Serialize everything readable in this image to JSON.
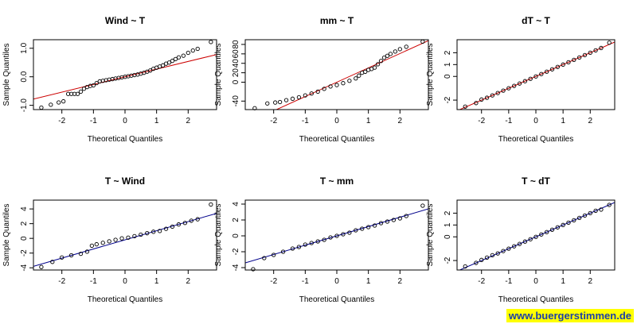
{
  "watermark": "www.buergerstimmen.de",
  "chart_data": [
    {
      "type": "scatter",
      "subtype": "qq-plot",
      "title": "Wind ~ T",
      "xlabel": "Theoretical Quantiles",
      "ylabel": "Sample Quantiles",
      "xlim": [
        -2.9,
        2.9
      ],
      "ylim": [
        -1.15,
        1.3
      ],
      "xticks": [
        "-2",
        "-1",
        "0",
        "1",
        "2"
      ],
      "yticks": [
        "-1.0",
        "0.0",
        "1.0"
      ],
      "reference_line": {
        "color": "#cc0000",
        "points": [
          [
            -2.9,
            -0.78
          ],
          [
            2.9,
            0.78
          ]
        ]
      },
      "point_color": "#000000",
      "points": [
        [
          -2.65,
          -1.08
        ],
        [
          -2.35,
          -0.98
        ],
        [
          -2.1,
          -0.9
        ],
        [
          -1.95,
          -0.86
        ],
        [
          -1.8,
          -0.6
        ],
        [
          -1.7,
          -0.6
        ],
        [
          -1.6,
          -0.6
        ],
        [
          -1.5,
          -0.6
        ],
        [
          -1.4,
          -0.52
        ],
        [
          -1.3,
          -0.42
        ],
        [
          -1.2,
          -0.36
        ],
        [
          -1.1,
          -0.32
        ],
        [
          -1.0,
          -0.3
        ],
        [
          -0.9,
          -0.22
        ],
        [
          -0.8,
          -0.16
        ],
        [
          -0.7,
          -0.14
        ],
        [
          -0.6,
          -0.12
        ],
        [
          -0.5,
          -0.1
        ],
        [
          -0.4,
          -0.08
        ],
        [
          -0.3,
          -0.06
        ],
        [
          -0.2,
          -0.04
        ],
        [
          -0.1,
          -0.02
        ],
        [
          0.0,
          0.0
        ],
        [
          0.1,
          0.02
        ],
        [
          0.2,
          0.04
        ],
        [
          0.3,
          0.06
        ],
        [
          0.4,
          0.08
        ],
        [
          0.5,
          0.11
        ],
        [
          0.6,
          0.14
        ],
        [
          0.7,
          0.18
        ],
        [
          0.8,
          0.22
        ],
        [
          0.9,
          0.28
        ],
        [
          1.0,
          0.32
        ],
        [
          1.1,
          0.36
        ],
        [
          1.2,
          0.4
        ],
        [
          1.3,
          0.46
        ],
        [
          1.4,
          0.5
        ],
        [
          1.5,
          0.56
        ],
        [
          1.6,
          0.62
        ],
        [
          1.7,
          0.68
        ],
        [
          1.85,
          0.74
        ],
        [
          2.0,
          0.84
        ],
        [
          2.15,
          0.92
        ],
        [
          2.3,
          0.98
        ],
        [
          2.72,
          1.22
        ]
      ]
    },
    {
      "type": "scatter",
      "subtype": "qq-plot",
      "title": "mm ~ T",
      "xlabel": "Theoretical Quantiles",
      "ylabel": "Sample Quantiles",
      "xlim": [
        -2.9,
        2.9
      ],
      "ylim": [
        -58,
        90
      ],
      "xticks": [
        "-2",
        "-1",
        "0",
        "1",
        "2"
      ],
      "yticks": [
        "-40",
        "0",
        "20",
        "40",
        "60",
        "80"
      ],
      "reference_line": {
        "color": "#cc0000",
        "points": [
          [
            -2.9,
            -88
          ],
          [
            2.9,
            88
          ]
        ]
      },
      "point_color": "#000000",
      "points": [
        [
          -2.6,
          -55
        ],
        [
          -2.2,
          -45
        ],
        [
          -1.95,
          -43
        ],
        [
          -1.8,
          -42
        ],
        [
          -1.6,
          -38
        ],
        [
          -1.4,
          -35
        ],
        [
          -1.2,
          -32
        ],
        [
          -1.0,
          -28
        ],
        [
          -0.8,
          -24
        ],
        [
          -0.6,
          -20
        ],
        [
          -0.4,
          -14
        ],
        [
          -0.2,
          -9
        ],
        [
          0.0,
          -6
        ],
        [
          0.2,
          -2
        ],
        [
          0.4,
          3
        ],
        [
          0.6,
          8
        ],
        [
          0.7,
          14
        ],
        [
          0.8,
          20
        ],
        [
          0.9,
          22
        ],
        [
          1.0,
          26
        ],
        [
          1.1,
          28
        ],
        [
          1.2,
          31
        ],
        [
          1.3,
          38
        ],
        [
          1.4,
          45
        ],
        [
          1.5,
          52
        ],
        [
          1.6,
          56
        ],
        [
          1.7,
          60
        ],
        [
          1.85,
          65
        ],
        [
          2.0,
          70
        ],
        [
          2.2,
          75
        ],
        [
          2.72,
          86
        ]
      ]
    },
    {
      "type": "scatter",
      "subtype": "qq-plot",
      "title": "dT ~ T",
      "xlabel": "Theoretical Quantiles",
      "ylabel": "Sample Quantiles",
      "xlim": [
        -2.9,
        2.9
      ],
      "ylim": [
        -2.8,
        3.1
      ],
      "xticks": [
        "-2",
        "-1",
        "0",
        "1",
        "2"
      ],
      "yticks": [
        "-2",
        "0",
        "1",
        "2"
      ],
      "reference_line": {
        "color": "#cc0000",
        "points": [
          [
            -2.9,
            -2.9
          ],
          [
            2.9,
            2.9
          ]
        ]
      },
      "point_color": "#000000",
      "points": [
        [
          -2.6,
          -2.55
        ],
        [
          -2.2,
          -2.25
        ],
        [
          -2.0,
          -1.95
        ],
        [
          -1.8,
          -1.8
        ],
        [
          -1.6,
          -1.6
        ],
        [
          -1.4,
          -1.4
        ],
        [
          -1.2,
          -1.2
        ],
        [
          -1.0,
          -1.0
        ],
        [
          -0.8,
          -0.8
        ],
        [
          -0.6,
          -0.6
        ],
        [
          -0.4,
          -0.4
        ],
        [
          -0.2,
          -0.2
        ],
        [
          0.0,
          0.0
        ],
        [
          0.2,
          0.2
        ],
        [
          0.4,
          0.4
        ],
        [
          0.6,
          0.6
        ],
        [
          0.8,
          0.8
        ],
        [
          1.0,
          1.0
        ],
        [
          1.2,
          1.2
        ],
        [
          1.4,
          1.4
        ],
        [
          1.6,
          1.6
        ],
        [
          1.8,
          1.8
        ],
        [
          2.0,
          2.0
        ],
        [
          2.2,
          2.2
        ],
        [
          2.4,
          2.4
        ],
        [
          2.7,
          2.85
        ]
      ]
    },
    {
      "type": "scatter",
      "subtype": "qq-plot",
      "title": "T ~ Wind",
      "xlabel": "Theoretical Quantiles",
      "ylabel": "Sample Quantiles",
      "xlim": [
        -2.9,
        2.9
      ],
      "ylim": [
        -4.3,
        5.2
      ],
      "xticks": [
        "-2",
        "-1",
        "0",
        "1",
        "2"
      ],
      "yticks": [
        "-4",
        "-2",
        "0",
        "2",
        "4"
      ],
      "reference_line": {
        "color": "#00008b",
        "points": [
          [
            -2.9,
            -3.8
          ],
          [
            2.9,
            3.4
          ]
        ]
      },
      "point_color": "#000000",
      "points": [
        [
          -2.65,
          -3.9
        ],
        [
          -2.3,
          -3.2
        ],
        [
          -2.0,
          -2.6
        ],
        [
          -1.7,
          -2.3
        ],
        [
          -1.4,
          -2.1
        ],
        [
          -1.2,
          -1.8
        ],
        [
          -1.05,
          -1.0
        ],
        [
          -0.9,
          -0.8
        ],
        [
          -0.7,
          -0.6
        ],
        [
          -0.5,
          -0.4
        ],
        [
          -0.3,
          -0.2
        ],
        [
          -0.1,
          0.0
        ],
        [
          0.1,
          0.1
        ],
        [
          0.3,
          0.3
        ],
        [
          0.5,
          0.5
        ],
        [
          0.7,
          0.7
        ],
        [
          0.9,
          0.9
        ],
        [
          1.1,
          1.0
        ],
        [
          1.3,
          1.3
        ],
        [
          1.5,
          1.6
        ],
        [
          1.7,
          1.9
        ],
        [
          1.9,
          2.1
        ],
        [
          2.1,
          2.4
        ],
        [
          2.3,
          2.6
        ],
        [
          2.72,
          4.6
        ]
      ]
    },
    {
      "type": "scatter",
      "subtype": "qq-plot",
      "title": "T ~ mm",
      "xlabel": "Theoretical Quantiles",
      "ylabel": "Sample Quantiles",
      "xlim": [
        -2.9,
        2.9
      ],
      "ylim": [
        -4.3,
        4.5
      ],
      "xticks": [
        "-2",
        "-1",
        "0",
        "1",
        "2"
      ],
      "yticks": [
        "-4",
        "-2",
        "0",
        "2",
        "4"
      ],
      "reference_line": {
        "color": "#00008b",
        "points": [
          [
            -2.9,
            -3.4
          ],
          [
            2.9,
            3.4
          ]
        ]
      },
      "point_color": "#000000",
      "points": [
        [
          -2.65,
          -4.2
        ],
        [
          -2.3,
          -2.8
        ],
        [
          -2.0,
          -2.4
        ],
        [
          -1.7,
          -2.0
        ],
        [
          -1.4,
          -1.6
        ],
        [
          -1.2,
          -1.4
        ],
        [
          -1.0,
          -1.1
        ],
        [
          -0.8,
          -0.9
        ],
        [
          -0.6,
          -0.7
        ],
        [
          -0.4,
          -0.5
        ],
        [
          -0.2,
          -0.2
        ],
        [
          0.0,
          0.0
        ],
        [
          0.2,
          0.2
        ],
        [
          0.4,
          0.4
        ],
        [
          0.6,
          0.7
        ],
        [
          0.8,
          0.9
        ],
        [
          1.0,
          1.1
        ],
        [
          1.2,
          1.3
        ],
        [
          1.4,
          1.6
        ],
        [
          1.6,
          1.8
        ],
        [
          1.8,
          2.0
        ],
        [
          2.0,
          2.2
        ],
        [
          2.2,
          2.5
        ],
        [
          2.72,
          3.8
        ]
      ]
    },
    {
      "type": "scatter",
      "subtype": "qq-plot",
      "title": "T ~ dT",
      "xlabel": "Theoretical Quantiles",
      "ylabel": "Sample Quantiles",
      "xlim": [
        -2.9,
        2.9
      ],
      "ylim": [
        -2.8,
        3.1
      ],
      "xticks": [
        "-2",
        "-1",
        "0",
        "1",
        "2"
      ],
      "yticks": [
        "-2",
        "0",
        "1",
        "2"
      ],
      "reference_line": {
        "color": "#00008b",
        "points": [
          [
            -2.9,
            -2.9
          ],
          [
            2.9,
            2.9
          ]
        ]
      },
      "point_color": "#000000",
      "points": [
        [
          -2.6,
          -2.5
        ],
        [
          -2.2,
          -2.2
        ],
        [
          -2.0,
          -1.95
        ],
        [
          -1.8,
          -1.75
        ],
        [
          -1.6,
          -1.55
        ],
        [
          -1.4,
          -1.4
        ],
        [
          -1.2,
          -1.2
        ],
        [
          -1.0,
          -1.0
        ],
        [
          -0.8,
          -0.8
        ],
        [
          -0.6,
          -0.6
        ],
        [
          -0.4,
          -0.4
        ],
        [
          -0.2,
          -0.2
        ],
        [
          0.0,
          0.0
        ],
        [
          0.2,
          0.2
        ],
        [
          0.4,
          0.4
        ],
        [
          0.6,
          0.6
        ],
        [
          0.8,
          0.8
        ],
        [
          1.0,
          1.0
        ],
        [
          1.2,
          1.2
        ],
        [
          1.4,
          1.4
        ],
        [
          1.6,
          1.6
        ],
        [
          1.8,
          1.8
        ],
        [
          2.0,
          2.0
        ],
        [
          2.2,
          2.2
        ],
        [
          2.4,
          2.3
        ],
        [
          2.7,
          2.7
        ]
      ]
    }
  ]
}
